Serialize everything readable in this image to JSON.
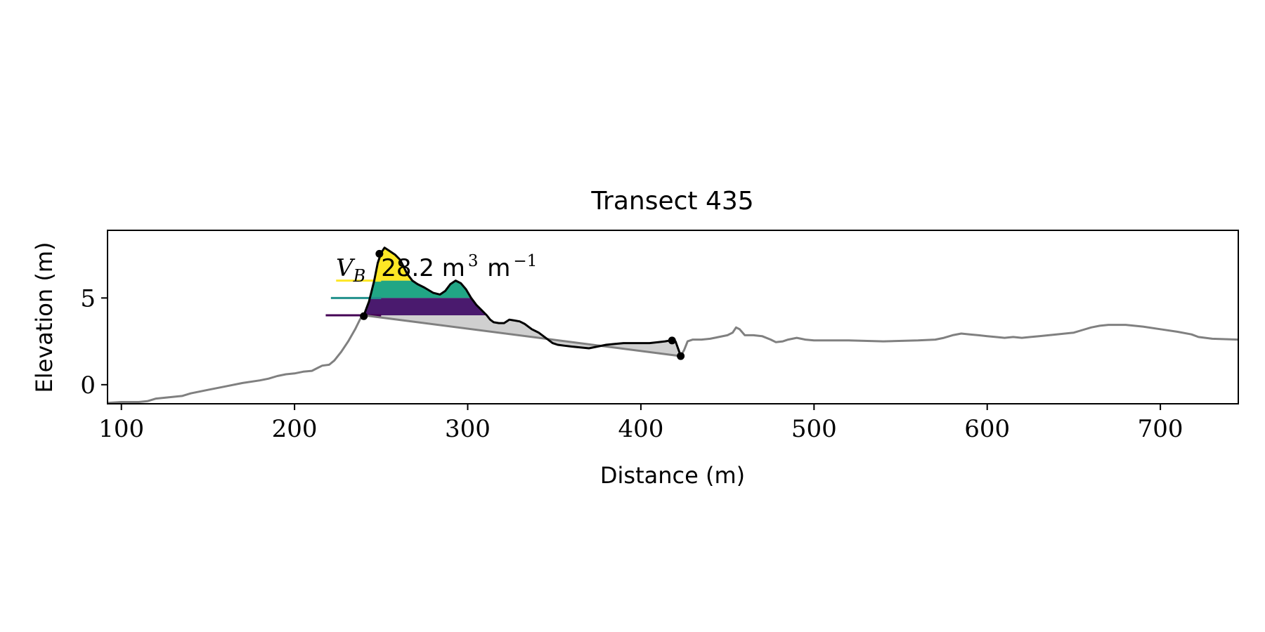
{
  "chart_data": {
    "type": "line",
    "title": "Transect 435",
    "xlabel": "Distance (m)",
    "ylabel": "Elevation (m)",
    "xlim": [
      92,
      745
    ],
    "ylim": [
      -1.1,
      8.9
    ],
    "xticks": [
      100,
      200,
      300,
      400,
      500,
      600,
      700
    ],
    "yticks": [
      0,
      5
    ],
    "annotation": {
      "symbol": "V",
      "subscript": "B",
      "text": "28.2 m",
      "sup1": "3",
      "text2": " m",
      "sup2": "−1"
    },
    "colors": {
      "profile": "#808080",
      "dune": "#000000",
      "shade": "#d0d0d0",
      "band_low": "#4a1a6e",
      "band_mid": "#21a685",
      "band_high": "#fde725",
      "line_low": "#440154",
      "line_mid": "#21918c",
      "line_high": "#fde725"
    },
    "bands": [
      {
        "name": "low",
        "from": 4.0,
        "to": 5.0,
        "line_start_x": 218
      },
      {
        "name": "mid",
        "from": 5.0,
        "to": 6.0,
        "line_start_x": 221
      },
      {
        "name": "high",
        "from": 6.0,
        "to": 9.0,
        "line_start_x": 224
      }
    ],
    "profile": [
      [
        92,
        -1.05
      ],
      [
        100,
        -1.0
      ],
      [
        110,
        -1.0
      ],
      [
        115,
        -0.95
      ],
      [
        120,
        -0.8
      ],
      [
        125,
        -0.75
      ],
      [
        130,
        -0.7
      ],
      [
        135,
        -0.65
      ],
      [
        140,
        -0.5
      ],
      [
        150,
        -0.3
      ],
      [
        160,
        -0.1
      ],
      [
        170,
        0.1
      ],
      [
        180,
        0.25
      ],
      [
        185,
        0.35
      ],
      [
        190,
        0.5
      ],
      [
        195,
        0.6
      ],
      [
        200,
        0.65
      ],
      [
        205,
        0.75
      ],
      [
        210,
        0.8
      ],
      [
        213,
        0.95
      ],
      [
        216,
        1.1
      ],
      [
        220,
        1.15
      ],
      [
        223,
        1.4
      ],
      [
        227,
        1.9
      ],
      [
        231,
        2.5
      ],
      [
        235,
        3.2
      ],
      [
        238,
        3.8
      ],
      [
        240,
        4.0
      ],
      [
        423,
        1.65
      ],
      [
        425,
        2.0
      ],
      [
        427,
        2.5
      ],
      [
        430,
        2.6
      ],
      [
        435,
        2.6
      ],
      [
        440,
        2.65
      ],
      [
        445,
        2.75
      ],
      [
        450,
        2.85
      ],
      [
        453,
        3.0
      ],
      [
        455,
        3.3
      ],
      [
        457,
        3.2
      ],
      [
        460,
        2.85
      ],
      [
        465,
        2.85
      ],
      [
        470,
        2.8
      ],
      [
        475,
        2.6
      ],
      [
        478,
        2.45
      ],
      [
        482,
        2.5
      ],
      [
        485,
        2.6
      ],
      [
        490,
        2.7
      ],
      [
        495,
        2.6
      ],
      [
        500,
        2.55
      ],
      [
        520,
        2.55
      ],
      [
        540,
        2.5
      ],
      [
        560,
        2.55
      ],
      [
        570,
        2.6
      ],
      [
        575,
        2.7
      ],
      [
        580,
        2.85
      ],
      [
        585,
        2.95
      ],
      [
        590,
        2.9
      ],
      [
        595,
        2.85
      ],
      [
        600,
        2.8
      ],
      [
        605,
        2.75
      ],
      [
        610,
        2.7
      ],
      [
        615,
        2.75
      ],
      [
        620,
        2.7
      ],
      [
        625,
        2.75
      ],
      [
        630,
        2.8
      ],
      [
        640,
        2.9
      ],
      [
        650,
        3.0
      ],
      [
        655,
        3.15
      ],
      [
        660,
        3.3
      ],
      [
        665,
        3.4
      ],
      [
        670,
        3.45
      ],
      [
        680,
        3.45
      ],
      [
        690,
        3.35
      ],
      [
        700,
        3.2
      ],
      [
        710,
        3.05
      ],
      [
        718,
        2.9
      ],
      [
        722,
        2.75
      ],
      [
        730,
        2.65
      ],
      [
        745,
        2.6
      ]
    ],
    "dune": [
      [
        240,
        4.0
      ],
      [
        243,
        4.8
      ],
      [
        246,
        6.0
      ],
      [
        248,
        7.0
      ],
      [
        250,
        7.6
      ],
      [
        252,
        7.9
      ],
      [
        255,
        7.7
      ],
      [
        258,
        7.5
      ],
      [
        261,
        7.2
      ],
      [
        263,
        6.8
      ],
      [
        265,
        6.4
      ],
      [
        268,
        6.0
      ],
      [
        271,
        5.8
      ],
      [
        275,
        5.6
      ],
      [
        280,
        5.3
      ],
      [
        284,
        5.2
      ],
      [
        287,
        5.4
      ],
      [
        290,
        5.8
      ],
      [
        293,
        6.0
      ],
      [
        296,
        5.85
      ],
      [
        299,
        5.5
      ],
      [
        302,
        5.0
      ],
      [
        305,
        4.6
      ],
      [
        308,
        4.3
      ],
      [
        311,
        4.0
      ],
      [
        313,
        3.75
      ],
      [
        315,
        3.6
      ],
      [
        318,
        3.55
      ],
      [
        321,
        3.55
      ],
      [
        324,
        3.75
      ],
      [
        327,
        3.7
      ],
      [
        330,
        3.65
      ],
      [
        333,
        3.5
      ],
      [
        337,
        3.2
      ],
      [
        341,
        3.0
      ],
      [
        345,
        2.7
      ],
      [
        349,
        2.4
      ],
      [
        352,
        2.3
      ],
      [
        356,
        2.25
      ],
      [
        360,
        2.2
      ],
      [
        365,
        2.15
      ],
      [
        370,
        2.1
      ],
      [
        375,
        2.2
      ],
      [
        380,
        2.3
      ],
      [
        385,
        2.35
      ],
      [
        390,
        2.4
      ],
      [
        395,
        2.4
      ],
      [
        400,
        2.4
      ],
      [
        405,
        2.4
      ],
      [
        410,
        2.45
      ],
      [
        414,
        2.5
      ],
      [
        417,
        2.55
      ],
      [
        420,
        2.5
      ],
      [
        422,
        1.95
      ],
      [
        423,
        1.65
      ]
    ],
    "markers": [
      [
        240,
        3.95
      ],
      [
        249,
        7.55
      ],
      [
        418,
        2.55
      ],
      [
        423,
        1.65
      ]
    ]
  }
}
